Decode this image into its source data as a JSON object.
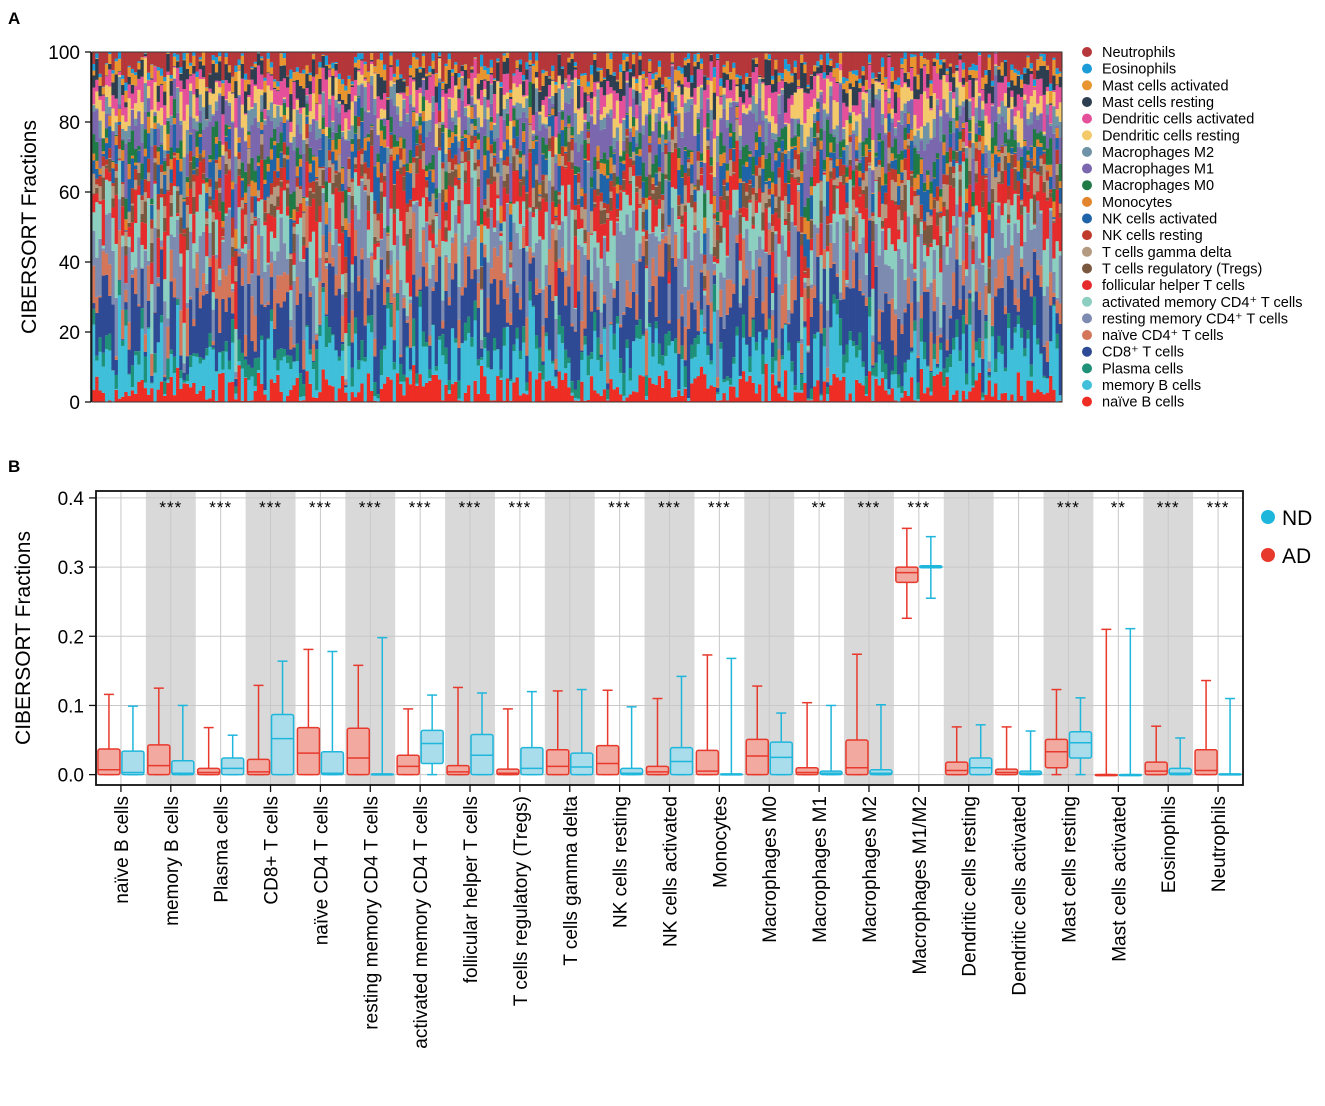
{
  "panel_a_label": "A",
  "panel_b_label": "B",
  "chart_data": [
    {
      "type": "bar",
      "stacked": true,
      "panel": "A",
      "title": "",
      "xlabel": "",
      "ylabel": "CIBERSORT Fractions",
      "ylim": [
        0,
        100
      ],
      "yticks": [
        "0",
        "20",
        "40",
        "60",
        "80",
        "100"
      ],
      "n_samples": 300,
      "legend_position": "right",
      "legend": [
        {
          "name": "Neutrophils",
          "color": "#b5373a"
        },
        {
          "name": "Eosinophils",
          "color": "#1b9bd7"
        },
        {
          "name": "Mast cells activated",
          "color": "#e89530"
        },
        {
          "name": "Mast cells resting",
          "color": "#2c3e50"
        },
        {
          "name": "Dendritic cells activated",
          "color": "#e4509a"
        },
        {
          "name": "Dendritic cells resting",
          "color": "#f3c96a"
        },
        {
          "name": "Macrophages M2",
          "color": "#6f93a6"
        },
        {
          "name": "Macrophages M1",
          "color": "#7a67ad"
        },
        {
          "name": "Macrophages M0",
          "color": "#1f7a46"
        },
        {
          "name": "Monocytes",
          "color": "#e3852d"
        },
        {
          "name": "NK cells activated",
          "color": "#1f63a8"
        },
        {
          "name": "NK cells resting",
          "color": "#c03a2b"
        },
        {
          "name": "T cells gamma delta",
          "color": "#b59a82"
        },
        {
          "name": "T cells regulatory (Tregs)",
          "color": "#7a5840"
        },
        {
          "name": "follicular helper T cells",
          "color": "#e52b2b"
        },
        {
          "name": "activated memory CD4⁺ T cells",
          "color": "#8ccfc0"
        },
        {
          "name": "resting memory CD4⁺ T cells",
          "color": "#7d8bb0"
        },
        {
          "name": "naïve CD4⁺ T cells",
          "color": "#d3765a"
        },
        {
          "name": "CD8⁺ T cells",
          "color": "#2e4a94"
        },
        {
          "name": "Plasma cells",
          "color": "#1e9178"
        },
        {
          "name": "memory B cells",
          "color": "#3fbfd9"
        },
        {
          "name": "naïve B cells",
          "color": "#ee2d24"
        }
      ],
      "mean_fractions_bottom_to_top": [
        4,
        9,
        3,
        12,
        6,
        11,
        8,
        7,
        3,
        3,
        2,
        4,
        2,
        3,
        6,
        3,
        4,
        4,
        3,
        2,
        1,
        4
      ]
    },
    {
      "type": "box",
      "panel": "B",
      "ylabel": "CIBERSORT Fractions",
      "ylim": [
        -0.015,
        0.41
      ],
      "yticks": [
        0.0,
        0.1,
        0.2,
        0.3,
        0.4
      ],
      "ytick_labels": [
        "0.0",
        "0.1",
        "0.2",
        "0.3",
        "0.4"
      ],
      "legend_position": "top-right",
      "groups": [
        {
          "name": "ND",
          "color": "#1fb6dc",
          "fill": "#a9ddec"
        },
        {
          "name": "AD",
          "color": "#e8392d",
          "fill": "#f2a99f"
        }
      ],
      "categories": [
        "naïve B cells",
        "memory B cells",
        "Plasma cells",
        "CD8+ T cells",
        "naïve CD4 T cells",
        "resting memory CD4 T cells",
        "activated memory CD4 T cells",
        "follicular helper T cells",
        "T cells regulatory (Tregs)",
        "T cells gamma delta",
        "NK cells resting",
        "NK cells activated",
        "Monocytes",
        "Macrophages M0",
        "Macrophages M1",
        "Macrophages M2",
        "Macrophages M1/M2",
        "Dendritic cells resting",
        "Dendritic cells activated",
        "Mast cells resting",
        "Mast cells activated",
        "Eosinophils",
        "Neutrophils"
      ],
      "shaded_categories": [
        1,
        3,
        5,
        7,
        9,
        11,
        13,
        15,
        17,
        19,
        21
      ],
      "significance": [
        "",
        "***",
        "***",
        "***",
        "***",
        "***",
        "***",
        "***",
        "***",
        "",
        "***",
        "***",
        "***",
        "",
        "**",
        "***",
        "***",
        "",
        "",
        "***",
        "**",
        "***",
        "***"
      ],
      "AD": [
        {
          "whisker_low": 0.0,
          "q1": 0.0,
          "median": 0.007,
          "q3": 0.037,
          "whisker_high": 0.116
        },
        {
          "whisker_low": 0.0,
          "q1": 0.0,
          "median": 0.013,
          "q3": 0.043,
          "whisker_high": 0.125
        },
        {
          "whisker_low": 0.0,
          "q1": 0.0,
          "median": 0.003,
          "q3": 0.009,
          "whisker_high": 0.068
        },
        {
          "whisker_low": 0.0,
          "q1": 0.0,
          "median": 0.004,
          "q3": 0.022,
          "whisker_high": 0.129
        },
        {
          "whisker_low": 0.0,
          "q1": 0.0,
          "median": 0.031,
          "q3": 0.068,
          "whisker_high": 0.181
        },
        {
          "whisker_low": 0.0,
          "q1": 0.0,
          "median": 0.024,
          "q3": 0.067,
          "whisker_high": 0.158
        },
        {
          "whisker_low": 0.0,
          "q1": 0.0,
          "median": 0.012,
          "q3": 0.028,
          "whisker_high": 0.095
        },
        {
          "whisker_low": 0.0,
          "q1": 0.0,
          "median": 0.004,
          "q3": 0.013,
          "whisker_high": 0.126
        },
        {
          "whisker_low": 0.0,
          "q1": 0.0,
          "median": 0.002,
          "q3": 0.008,
          "whisker_high": 0.095
        },
        {
          "whisker_low": 0.0,
          "q1": 0.0,
          "median": 0.012,
          "q3": 0.036,
          "whisker_high": 0.121
        },
        {
          "whisker_low": 0.0,
          "q1": 0.0,
          "median": 0.016,
          "q3": 0.042,
          "whisker_high": 0.122
        },
        {
          "whisker_low": 0.0,
          "q1": 0.0,
          "median": 0.004,
          "q3": 0.012,
          "whisker_high": 0.11
        },
        {
          "whisker_low": 0.0,
          "q1": 0.0,
          "median": 0.005,
          "q3": 0.035,
          "whisker_high": 0.173
        },
        {
          "whisker_low": 0.0,
          "q1": 0.0,
          "median": 0.027,
          "q3": 0.051,
          "whisker_high": 0.128
        },
        {
          "whisker_low": 0.0,
          "q1": 0.0,
          "median": 0.003,
          "q3": 0.01,
          "whisker_high": 0.104
        },
        {
          "whisker_low": 0.0,
          "q1": 0.0,
          "median": 0.01,
          "q3": 0.05,
          "whisker_high": 0.174
        },
        {
          "whisker_low": 0.226,
          "q1": 0.278,
          "median": 0.292,
          "q3": 0.3,
          "whisker_high": 0.356
        },
        {
          "whisker_low": 0.0,
          "q1": 0.0,
          "median": 0.006,
          "q3": 0.018,
          "whisker_high": 0.069
        },
        {
          "whisker_low": 0.0,
          "q1": 0.0,
          "median": 0.003,
          "q3": 0.008,
          "whisker_high": 0.069
        },
        {
          "whisker_low": 0.0,
          "q1": 0.01,
          "median": 0.033,
          "q3": 0.051,
          "whisker_high": 0.123
        },
        {
          "whisker_low": 0.0,
          "q1": 0.0,
          "median": 0.0,
          "q3": 0.0,
          "whisker_high": 0.21
        },
        {
          "whisker_low": 0.0,
          "q1": 0.0,
          "median": 0.005,
          "q3": 0.018,
          "whisker_high": 0.07
        },
        {
          "whisker_low": 0.0,
          "q1": 0.0,
          "median": 0.006,
          "q3": 0.036,
          "whisker_high": 0.136
        }
      ],
      "ND": [
        {
          "whisker_low": 0.0,
          "q1": 0.0,
          "median": 0.003,
          "q3": 0.034,
          "whisker_high": 0.099
        },
        {
          "whisker_low": 0.0,
          "q1": 0.0,
          "median": 0.002,
          "q3": 0.02,
          "whisker_high": 0.1
        },
        {
          "whisker_low": 0.0,
          "q1": 0.0,
          "median": 0.009,
          "q3": 0.024,
          "whisker_high": 0.057
        },
        {
          "whisker_low": 0.0,
          "q1": 0.0,
          "median": 0.052,
          "q3": 0.087,
          "whisker_high": 0.164
        },
        {
          "whisker_low": 0.0,
          "q1": 0.0,
          "median": 0.002,
          "q3": 0.033,
          "whisker_high": 0.178
        },
        {
          "whisker_low": 0.0,
          "q1": 0.0,
          "median": 0.0,
          "q3": 0.001,
          "whisker_high": 0.198
        },
        {
          "whisker_low": 0.0,
          "q1": 0.016,
          "median": 0.045,
          "q3": 0.064,
          "whisker_high": 0.115
        },
        {
          "whisker_low": 0.0,
          "q1": 0.0,
          "median": 0.028,
          "q3": 0.058,
          "whisker_high": 0.118
        },
        {
          "whisker_low": 0.0,
          "q1": 0.0,
          "median": 0.009,
          "q3": 0.039,
          "whisker_high": 0.12
        },
        {
          "whisker_low": 0.0,
          "q1": 0.0,
          "median": 0.011,
          "q3": 0.031,
          "whisker_high": 0.123
        },
        {
          "whisker_low": 0.0,
          "q1": 0.0,
          "median": 0.002,
          "q3": 0.009,
          "whisker_high": 0.098
        },
        {
          "whisker_low": 0.0,
          "q1": 0.0,
          "median": 0.019,
          "q3": 0.039,
          "whisker_high": 0.142
        },
        {
          "whisker_low": 0.0,
          "q1": 0.0,
          "median": 0.0,
          "q3": 0.001,
          "whisker_high": 0.168
        },
        {
          "whisker_low": 0.0,
          "q1": 0.0,
          "median": 0.025,
          "q3": 0.047,
          "whisker_high": 0.089
        },
        {
          "whisker_low": 0.0,
          "q1": 0.0,
          "median": 0.002,
          "q3": 0.005,
          "whisker_high": 0.1
        },
        {
          "whisker_low": 0.0,
          "q1": 0.0,
          "median": 0.002,
          "q3": 0.007,
          "whisker_high": 0.101
        },
        {
          "whisker_low": 0.255,
          "q1": 0.299,
          "median": 0.301,
          "q3": 0.302,
          "whisker_high": 0.344
        },
        {
          "whisker_low": 0.0,
          "q1": 0.0,
          "median": 0.01,
          "q3": 0.024,
          "whisker_high": 0.072
        },
        {
          "whisker_low": 0.0,
          "q1": 0.0,
          "median": 0.002,
          "q3": 0.005,
          "whisker_high": 0.063
        },
        {
          "whisker_low": 0.0,
          "q1": 0.024,
          "median": 0.046,
          "q3": 0.062,
          "whisker_high": 0.111
        },
        {
          "whisker_low": 0.0,
          "q1": 0.0,
          "median": 0.0,
          "q3": 0.0,
          "whisker_high": 0.211
        },
        {
          "whisker_low": 0.0,
          "q1": 0.0,
          "median": 0.002,
          "q3": 0.009,
          "whisker_high": 0.053
        },
        {
          "whisker_low": 0.0,
          "q1": 0.0,
          "median": 0.0,
          "q3": 0.001,
          "whisker_high": 0.11
        }
      ]
    }
  ]
}
